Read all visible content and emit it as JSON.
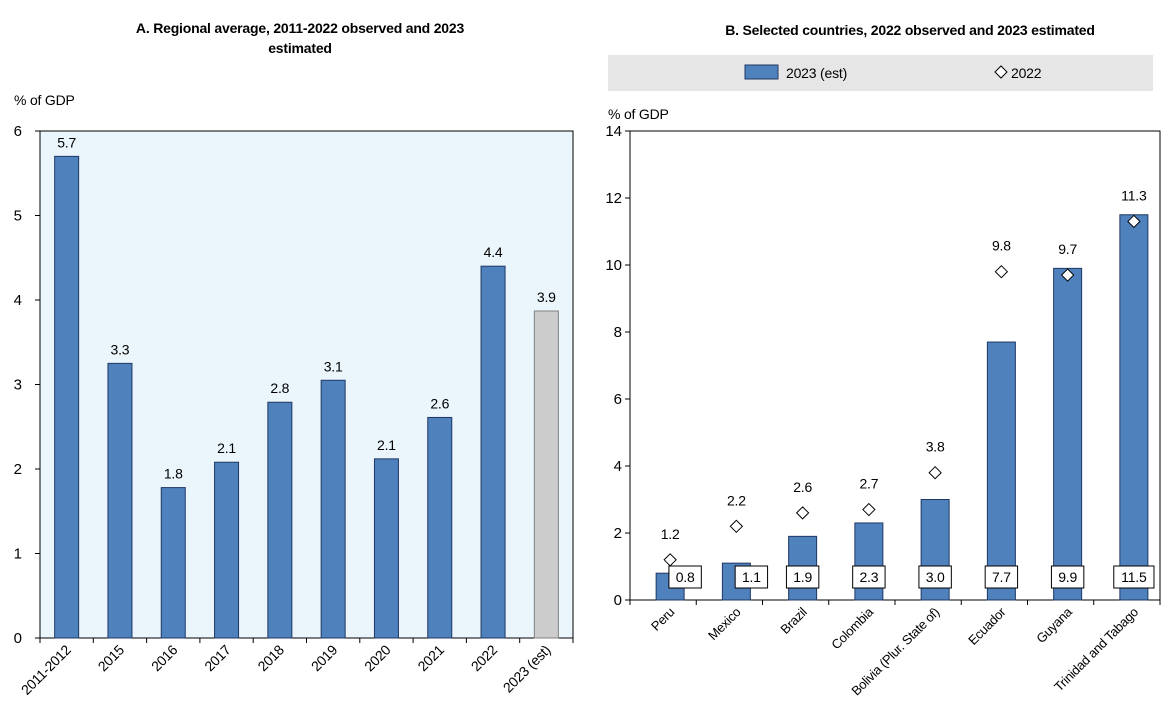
{
  "colors": {
    "bar": "#4f81bd",
    "bar_stroke": "#1f3864",
    "estimate_bar": "#cccccc",
    "estimate_bar_stroke": "#808080",
    "plot_background_a": "#eaf6fb",
    "plot_background_b": "#ffffff",
    "legend_background": "#e6e6e6",
    "marker_fill": "#ffffff",
    "marker_stroke": "#000000"
  },
  "chart_data": [
    {
      "type": "bar",
      "title": "A. Regional average, 2011-2022 observed and 2023 estimated",
      "ylabel": "% of GDP",
      "ylim": [
        0,
        6
      ],
      "yticks": [
        0,
        1,
        2,
        3,
        4,
        5,
        6
      ],
      "grid": false,
      "categories": [
        "2011-2012",
        "2015",
        "2016",
        "2017",
        "2018",
        "2019",
        "2020",
        "2021",
        "2022",
        "2023 (est)"
      ],
      "values": [
        5.7,
        3.25,
        1.78,
        2.08,
        2.79,
        3.05,
        2.12,
        2.61,
        4.4,
        3.87
      ],
      "data_labels": [
        "5.7",
        "3.3",
        "1.8",
        "2.1",
        "2.8",
        "3.1",
        "2.1",
        "2.6",
        "4.4",
        "3.9"
      ],
      "bar_colors": [
        "#4f81bd",
        "#4f81bd",
        "#4f81bd",
        "#4f81bd",
        "#4f81bd",
        "#4f81bd",
        "#4f81bd",
        "#4f81bd",
        "#4f81bd",
        "#cccccc"
      ]
    },
    {
      "type": "bar",
      "title": "B. Selected countries, 2022 observed and 2023 estimated",
      "ylabel": "% of GDP",
      "ylim": [
        0,
        14
      ],
      "yticks": [
        0,
        2,
        4,
        6,
        8,
        10,
        12,
        14
      ],
      "grid": false,
      "legend": "top",
      "categories": [
        "Peru",
        "Mexico",
        "Brazil",
        "Colombia",
        "Bolivia (Plur. State of)",
        "Ecuador",
        "Guyana",
        "Trinidad and Tabago"
      ],
      "series": [
        {
          "name": "2023 (est)",
          "type": "bar",
          "values": [
            0.8,
            1.1,
            1.9,
            2.3,
            3.0,
            7.7,
            9.9,
            11.5
          ],
          "data_labels": [
            "0.8",
            "1.1",
            "1.9",
            "2.3",
            "3.0",
            "7.7",
            "9.9",
            "11.5"
          ]
        },
        {
          "name": "2022",
          "type": "marker",
          "marker": "diamond",
          "values": [
            1.2,
            2.2,
            2.6,
            2.7,
            3.8,
            9.8,
            9.7,
            11.3
          ],
          "data_labels": [
            "1.2",
            "2.2",
            "2.6",
            "2.7",
            "3.8",
            "9.8",
            "9.7",
            "11.3"
          ]
        }
      ]
    }
  ]
}
